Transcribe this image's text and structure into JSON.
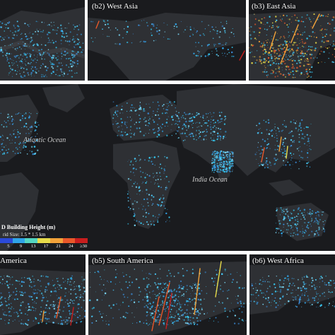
{
  "panels": {
    "b1": {
      "label": ""
    },
    "b2": {
      "label": "(b2) West Asia"
    },
    "b3": {
      "label": "(b3) East Asia"
    },
    "b4": {
      "label": "America"
    },
    "b5": {
      "label": "(b5) South America"
    },
    "b6": {
      "label": "(b6) West Africa"
    }
  },
  "main": {
    "ocean_labels": [
      "Atlantic Ocean",
      "India Ocean"
    ]
  },
  "legend": {
    "title": "D Building Height (m)",
    "subtitle": "rid Size: 1.5 * 1.5 km",
    "ticks": [
      "5",
      "9",
      "13",
      "17",
      "21",
      "24",
      "≥30"
    ],
    "colors": [
      "#2b4ad8",
      "#2fa4e8",
      "#54d6c2",
      "#e8dc4a",
      "#f2a23a",
      "#e8582a",
      "#c81e1e"
    ]
  },
  "colors": {
    "background": "#1a1b1e",
    "land": "#2e3034",
    "lights": "#35c8f0"
  }
}
